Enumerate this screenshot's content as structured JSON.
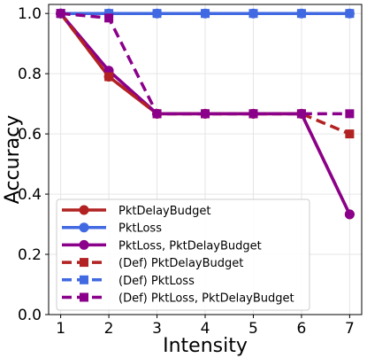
{
  "chart_data": {
    "type": "line",
    "title": "",
    "xlabel": "Intensity",
    "ylabel": "Accuracy",
    "x": [
      1,
      2,
      3,
      4,
      5,
      6,
      7
    ],
    "xlim": [
      0.75,
      7.25
    ],
    "ylim": [
      0.0,
      1.03
    ],
    "xticks": [
      "1",
      "2",
      "3",
      "4",
      "5",
      "6",
      "7"
    ],
    "yticks": [
      "0.0",
      "0.2",
      "0.4",
      "0.6",
      "0.8",
      "1.0"
    ],
    "grid": true,
    "legend_position": "bottom-left",
    "series": [
      {
        "name": "PktDelayBudget",
        "color": "#b22222",
        "linestyle": "solid",
        "marker": "circle",
        "values": [
          1.0,
          0.79,
          0.667,
          0.667,
          0.667,
          0.667,
          0.333
        ]
      },
      {
        "name": "PktLoss",
        "color": "#4169e1",
        "linestyle": "solid",
        "marker": "circle",
        "values": [
          1.0,
          1.0,
          1.0,
          1.0,
          1.0,
          1.0,
          1.0
        ]
      },
      {
        "name": "PktLoss, PktDelayBudget",
        "color": "#8b008b",
        "linestyle": "solid",
        "marker": "circle",
        "values": [
          1.0,
          0.81,
          0.667,
          0.667,
          0.667,
          0.667,
          0.333
        ]
      },
      {
        "name": "(Def) PktDelayBudget",
        "color": "#b22222",
        "linestyle": "dashed",
        "marker": "square",
        "values": [
          1.0,
          0.79,
          0.667,
          0.667,
          0.667,
          0.667,
          0.6
        ]
      },
      {
        "name": "(Def) PktLoss",
        "color": "#4169e1",
        "linestyle": "dashed",
        "marker": "square",
        "values": [
          1.0,
          1.0,
          1.0,
          1.0,
          1.0,
          1.0,
          1.0
        ]
      },
      {
        "name": "(Def) PktLoss, PktDelayBudget",
        "color": "#8b008b",
        "linestyle": "dashed",
        "marker": "square",
        "values": [
          1.0,
          0.985,
          0.667,
          0.667,
          0.667,
          0.667,
          0.667
        ]
      }
    ]
  }
}
